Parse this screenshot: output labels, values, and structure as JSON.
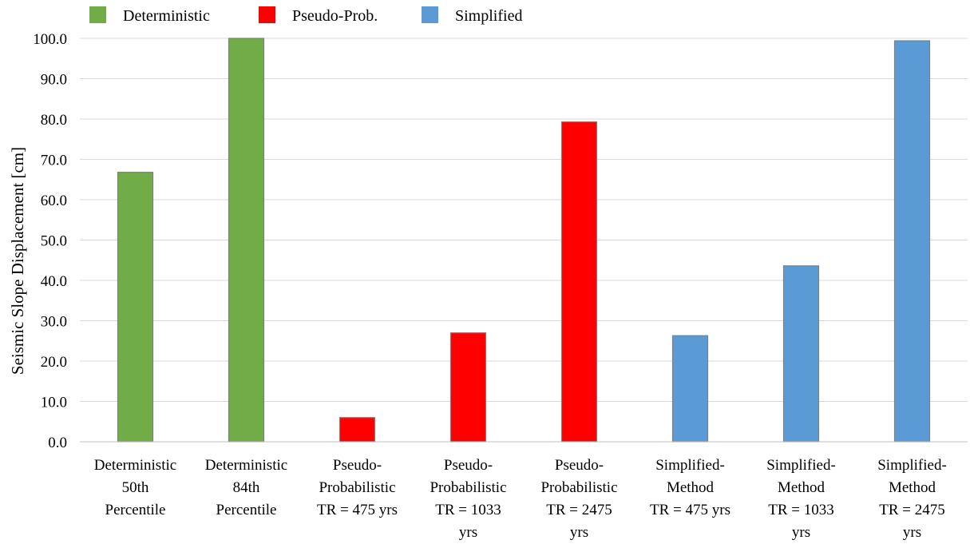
{
  "chart_data": {
    "type": "bar",
    "title": "",
    "xlabel": "",
    "ylabel": "Seismic Slope Displacement [cm]",
    "ylim": [
      0,
      100
    ],
    "ytick_step": 10,
    "ytick_format_decimals": 1,
    "grid": true,
    "legend_placement": "top-left",
    "legend": [
      {
        "name": "Deterministic",
        "color": "#70ad47"
      },
      {
        "name": "Pseudo-Prob.",
        "color": "#ff0000"
      },
      {
        "name": "Simplified",
        "color": "#5b9bd5"
      }
    ],
    "categories": [
      [
        "Deterministic",
        "50th",
        "Percentile"
      ],
      [
        "Deterministic",
        "84th",
        "Percentile"
      ],
      [
        "Pseudo-",
        "Probabilistic",
        "TR = 475 yrs"
      ],
      [
        "Pseudo-",
        "Probabilistic",
        "TR = 1033",
        "yrs"
      ],
      [
        "Pseudo-",
        "Probabilistic",
        "TR = 2475",
        "yrs"
      ],
      [
        "Simplified-",
        "Method",
        "TR = 475 yrs"
      ],
      [
        "Simplified-",
        "Method",
        "TR = 1033",
        "yrs"
      ],
      [
        "Simplified-",
        "Method",
        "TR = 2475",
        "yrs"
      ]
    ],
    "values": [
      66.8,
      100.0,
      6.0,
      27.0,
      79.3,
      26.3,
      43.6,
      99.4
    ],
    "bar_group": [
      0,
      0,
      1,
      1,
      1,
      2,
      2,
      2
    ]
  }
}
